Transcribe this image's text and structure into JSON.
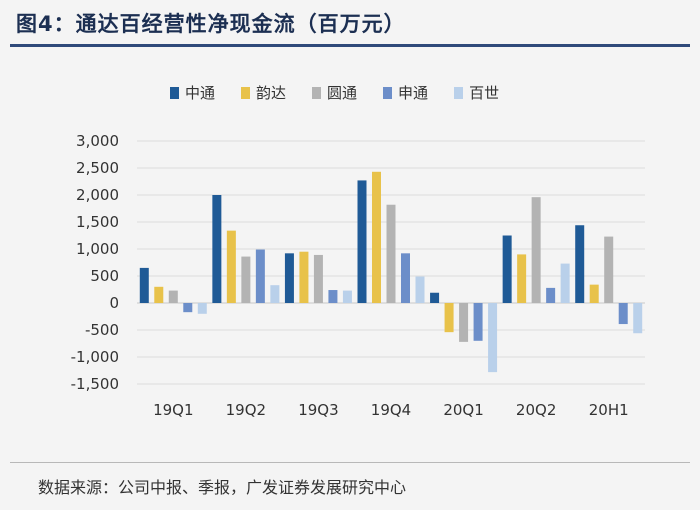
{
  "title": "图4：通达百经营性净现金流（百万元）",
  "source": "数据来源：公司中报、季报，广发证券发展研究中心",
  "chart_data": {
    "type": "bar",
    "categories": [
      "19Q1",
      "19Q2",
      "19Q3",
      "19Q4",
      "20Q1",
      "20Q2",
      "20H1"
    ],
    "ylim": [
      -1500,
      3000
    ],
    "yticks": [
      3000,
      2500,
      2000,
      1500,
      1000,
      500,
      0,
      -500,
      -1000,
      -1500
    ],
    "ytick_labels": [
      "3,000",
      "2,500",
      "2,000",
      "1,500",
      "1,000",
      "500",
      "0",
      "-500",
      "-1,000",
      "-1,500"
    ],
    "legend_position": "top",
    "grid": true,
    "series": [
      {
        "name": "中通",
        "color": "#1f5a96",
        "values": [
          650,
          2000,
          920,
          2270,
          190,
          1250,
          1440
        ]
      },
      {
        "name": "韵达",
        "color": "#e8c24a",
        "values": [
          300,
          1340,
          950,
          2430,
          -540,
          900,
          340
        ]
      },
      {
        "name": "圆通",
        "color": "#b3b3b3",
        "values": [
          230,
          860,
          890,
          1820,
          -720,
          1960,
          1230
        ]
      },
      {
        "name": "申通",
        "color": "#6c8ec9",
        "values": [
          -170,
          990,
          240,
          920,
          -700,
          280,
          -390
        ]
      },
      {
        "name": "百世",
        "color": "#b9d0ea",
        "values": [
          -200,
          330,
          230,
          490,
          -1280,
          730,
          -560
        ]
      }
    ]
  }
}
